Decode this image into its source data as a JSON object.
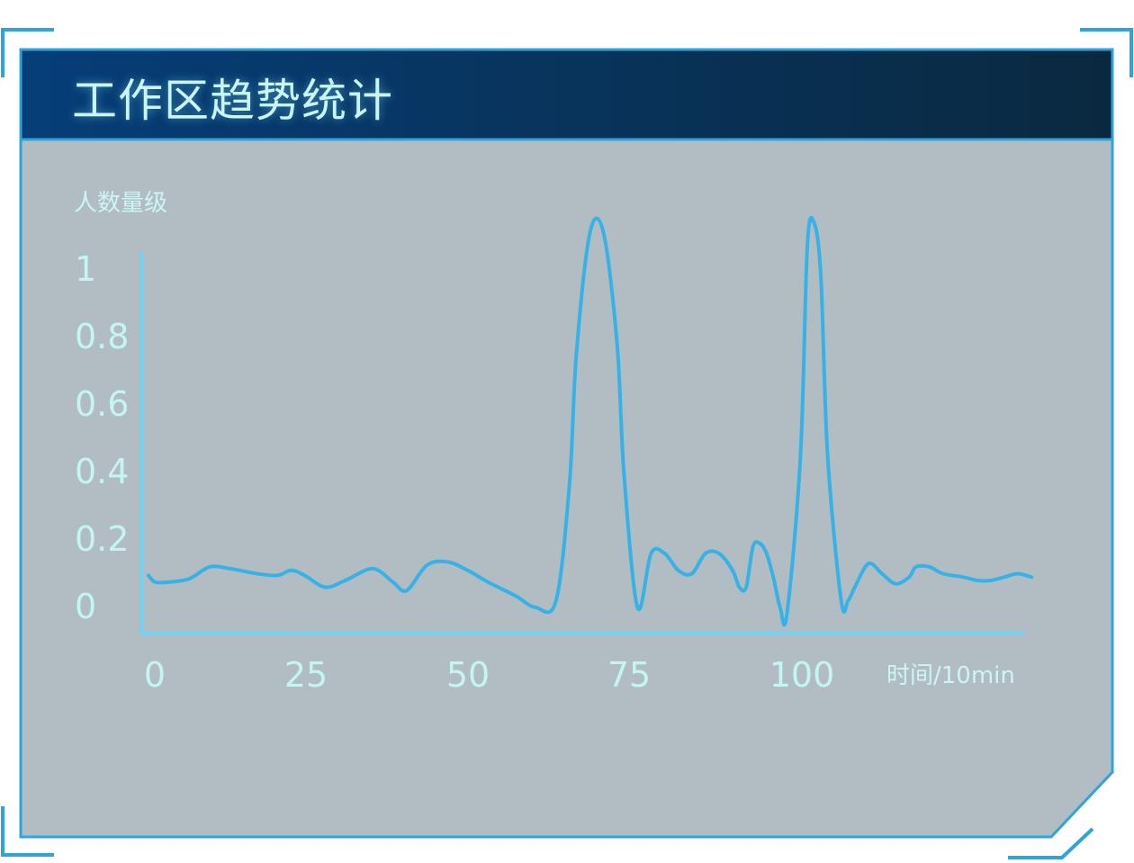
{
  "panel": {
    "title": "工作区趋势统计"
  },
  "colors": {
    "frame": "#2fa3dc",
    "header_start": "#063d73",
    "header_end": "#0a2a45",
    "panel_bg": "#b1bdc3",
    "axis": "#72d2f2",
    "line": "#36b2e6",
    "text": "#c9f6f4"
  },
  "chart_data": {
    "type": "line",
    "title": "工作区趋势统计",
    "ylabel": "人数量级",
    "xlabel": "时间/10min",
    "xlim": [
      0,
      130
    ],
    "ylim": [
      0,
      1
    ],
    "xticks": [
      "0",
      "25",
      "50",
      "75",
      "100"
    ],
    "yticks": [
      "0",
      "0.2",
      "0.4",
      "0.6",
      "0.8",
      "1"
    ],
    "grid": false,
    "series": [
      {
        "x": [
          0,
          1,
          3,
          6,
          9,
          12,
          16,
          19,
          21,
          23,
          26,
          29,
          33,
          36,
          38,
          41,
          44,
          47,
          50,
          54,
          57,
          60,
          62,
          63,
          65,
          67,
          69,
          70,
          72,
          74,
          76,
          78,
          80,
          82,
          84,
          86,
          87,
          88,
          89,
          90,
          91,
          92,
          93,
          94,
          96,
          97,
          98,
          99,
          100,
          102,
          103,
          104,
          106,
          108,
          110,
          112,
          113,
          115,
          117,
          120,
          122,
          124,
          126,
          128,
          130
        ],
        "values": [
          0.095,
          0.075,
          0.075,
          0.085,
          0.12,
          0.115,
          0.1,
          0.095,
          0.11,
          0.095,
          0.06,
          0.08,
          0.115,
          0.075,
          0.05,
          0.125,
          0.135,
          0.11,
          0.075,
          0.035,
          0.0,
          0.02,
          0.37,
          0.75,
          1.11,
          1.11,
          0.78,
          0.4,
          0.0,
          0.16,
          0.16,
          0.11,
          0.1,
          0.16,
          0.16,
          0.11,
          0.06,
          0.06,
          0.18,
          0.19,
          0.16,
          0.09,
          0.0,
          -0.02,
          0.45,
          1.07,
          1.14,
          0.98,
          0.45,
          0.02,
          0.02,
          0.06,
          0.13,
          0.1,
          0.07,
          0.09,
          0.12,
          0.12,
          0.1,
          0.09,
          0.08,
          0.08,
          0.09,
          0.1,
          0.09
        ]
      }
    ]
  }
}
